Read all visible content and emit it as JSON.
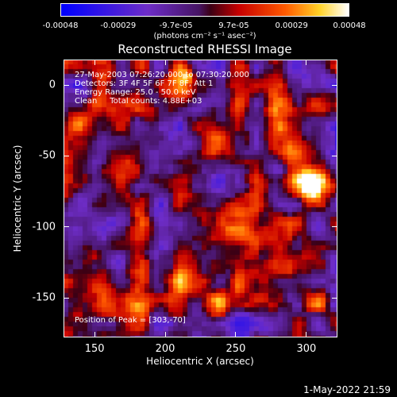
{
  "colorbar": {
    "ticks": [
      "-0.00048",
      "-0.00029",
      "-9.7e-05",
      "9.7e-05",
      "0.00029",
      "0.00048"
    ],
    "unit_label": "(photons cm⁻² s⁻¹ asec⁻²)"
  },
  "info": {
    "time_range": "27-May-2003 07:26:20.000 to 07:30:20.000",
    "detectors": "Detectors: 3F 4F 5F 6F 7F 8F, Att 1",
    "energy": "Energy Range: 25.0 - 50.0 keV",
    "method": "Clean     Total counts: 4.88E+03",
    "peak": "Position of Peak = [303,-70]"
  },
  "footer": {
    "date": "1-May-2022 21:59"
  },
  "chart_data": {
    "type": "heatmap",
    "title": "Reconstructed RHESSI Image",
    "xlabel": "Heliocentric X (arcsec)",
    "ylabel": "Heliocentric Y (arcsec)",
    "xlim": [
      128,
      322
    ],
    "ylim": [
      -178,
      18
    ],
    "x_ticks": [
      150,
      200,
      250,
      300
    ],
    "y_ticks": [
      0,
      -50,
      -100,
      -150
    ],
    "colorbar_range": [
      -0.00048,
      0.00048
    ],
    "grid": false,
    "sources": [
      {
        "x": 303,
        "y": -70,
        "peak": 0.00048,
        "width": 10
      },
      {
        "x": 255,
        "y": -103,
        "peak": 0.00045,
        "width": 12
      },
      {
        "x": 170,
        "y": -62,
        "peak": 0.00036,
        "width": 11
      },
      {
        "x": 292,
        "y": -48,
        "peak": 0.0003,
        "width": 9
      },
      {
        "x": 230,
        "y": -42,
        "peak": 0.00025,
        "width": 10
      },
      {
        "x": 215,
        "y": 5,
        "peak": 0.0003,
        "width": 8
      },
      {
        "x": 280,
        "y": -15,
        "peak": 0.0003,
        "width": 9
      },
      {
        "x": 138,
        "y": -25,
        "peak": 0.00028,
        "width": 9
      },
      {
        "x": 215,
        "y": -130,
        "peak": 0.0003,
        "width": 10
      },
      {
        "x": 235,
        "y": -150,
        "peak": 0.00028,
        "width": 9
      },
      {
        "x": 145,
        "y": -120,
        "peak": 0.00022,
        "width": 8
      },
      {
        "x": 265,
        "y": -135,
        "peak": 0.00024,
        "width": 9
      },
      {
        "x": 185,
        "y": -100,
        "peak": 0.0002,
        "width": 8
      },
      {
        "x": 170,
        "y": -160,
        "peak": 0.00022,
        "width": 9
      },
      {
        "x": 305,
        "y": -155,
        "peak": 0.0002,
        "width": 8
      },
      {
        "x": 190,
        "y": -25,
        "peak": 0.00018,
        "width": 8
      },
      {
        "x": 160,
        "y": 10,
        "peak": 0.0002,
        "width": 8
      }
    ]
  }
}
